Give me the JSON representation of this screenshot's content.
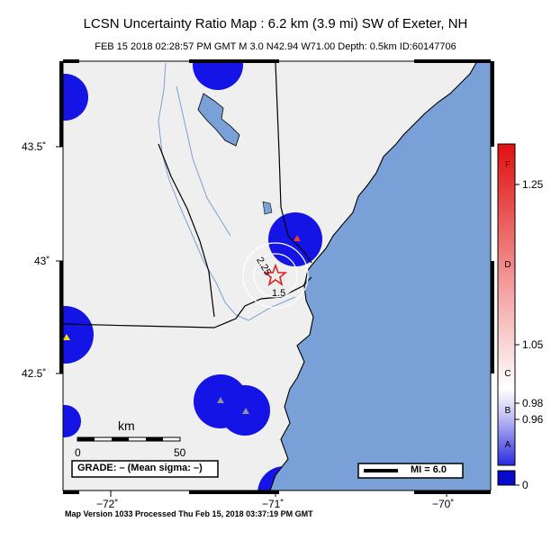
{
  "header": {
    "title": "LCSN Uncertainty Ratio Map : 6.2 km (3.9 mi) SW of Exeter, NH",
    "subtitle": "FEB 15 2018 02:28:57 PM GMT    M 3.0    N42.94 W71.00    Depth: 0.5km    ID:60147706"
  },
  "axes": {
    "lat_labels": [
      "43.5˚",
      "43˚",
      "42.5˚"
    ],
    "lon_labels": [
      "−72˚",
      "−71˚",
      "−70˚"
    ]
  },
  "contours": [
    "2.25",
    "1.5"
  ],
  "scalebar": {
    "unit": "km",
    "start": "0",
    "end": "50"
  },
  "grade_box": "GRADE: – (Mean sigma: –)",
  "mi_box": "MI = 6.0",
  "colorbar": {
    "values": [
      "1.25",
      "1.05",
      "0.98",
      "0.96",
      "0"
    ],
    "grades": [
      "F",
      "D",
      "C",
      "B",
      "A"
    ]
  },
  "footer": "Map Version 1033 Processed Thu Feb 15, 2018 03:37:19 PM GMT",
  "colors": {
    "land": "#efefef",
    "water": "#7aa0d8",
    "blue_cells": "#1414e6",
    "red_top": "#e01010",
    "star": "#e02020"
  }
}
